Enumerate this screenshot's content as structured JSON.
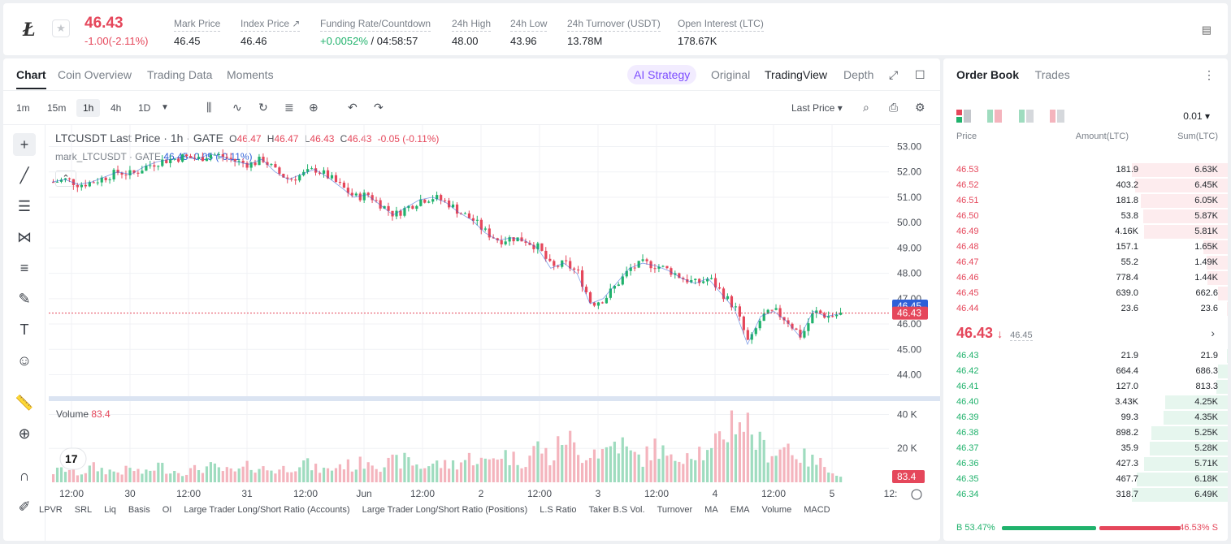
{
  "ticker": {
    "symbol_logo": "Ł",
    "last_price": "46.43",
    "change": "-1.00(-2.11%)",
    "stats": [
      {
        "label": "Mark Price",
        "value": "46.45"
      },
      {
        "label": "Index Price ↗",
        "value": "46.46"
      },
      {
        "label": "Funding Rate/Countdown",
        "value_green": "+0.0052%",
        "value": " / 04:58:57"
      },
      {
        "label": "24h High",
        "value": "48.00"
      },
      {
        "label": "24h Low",
        "value": "43.96"
      },
      {
        "label": "24h Turnover (USDT)",
        "value": "13.78M"
      },
      {
        "label": "Open Interest (LTC)",
        "value": "178.67K"
      }
    ]
  },
  "chart_tabs": [
    "Chart",
    "Coin Overview",
    "Trading Data",
    "Moments"
  ],
  "view_tabs": {
    "strategy": "AI Strategy",
    "items": [
      "Original",
      "TradingView",
      "Depth"
    ]
  },
  "timeframes": [
    "1m",
    "15m",
    "1h",
    "4h",
    "1D"
  ],
  "price_source": "Last Price",
  "legend": {
    "title": "LTCUSDT Last Price · 1h · GATE",
    "ohlc": [
      {
        "k": "O",
        "v": "46.47"
      },
      {
        "k": "H",
        "v": "46.47"
      },
      {
        "k": "L",
        "v": "46.43"
      },
      {
        "k": "C",
        "v": "46.43"
      }
    ],
    "delta": "-0.05 (-0.11%)",
    "mark_label": "mark_LTCUSDT · GATE",
    "mark_values": "46.45 -0.05 (-0.11%)",
    "volume_label": "Volume",
    "volume_value": "83.4"
  },
  "chart_data": {
    "type": "candlestick",
    "price_axis": [
      "53.00",
      "52.00",
      "51.00",
      "50.00",
      "49.00",
      "48.00",
      "47.00",
      "46.00",
      "45.00",
      "44.00"
    ],
    "price_range": [
      43.6,
      53.4
    ],
    "volume_axis": [
      "40 K",
      "20 K"
    ],
    "volume_range": [
      0,
      45000
    ],
    "x_ticks": [
      "12:00",
      "30",
      "12:00",
      "31",
      "12:00",
      "Jun",
      "12:00",
      "2",
      "12:00",
      "3",
      "12:00",
      "4",
      "12:00",
      "5",
      "12:"
    ],
    "close_trend": [
      51.6,
      51.7,
      51.5,
      51.6,
      51.8,
      52.0,
      51.9,
      52.2,
      52.4,
      52.5,
      52.6,
      52.5,
      52.7,
      52.6,
      52.4,
      52.3,
      52.5,
      52.0,
      51.7,
      51.9,
      52.1,
      51.8,
      51.4,
      51.0,
      51.1,
      50.7,
      50.3,
      50.6,
      50.9,
      51.0,
      50.8,
      50.4,
      50.1,
      49.6,
      49.3,
      49.4,
      49.3,
      49.0,
      48.2,
      48.4,
      48.0,
      46.8,
      47.0,
      47.6,
      48.2,
      48.4,
      48.3,
      48.1,
      47.8,
      47.6,
      47.8,
      47.2,
      46.6,
      45.2,
      46.3,
      46.5,
      46.1,
      45.5,
      46.5,
      46.3,
      46.4
    ],
    "volume_trend": [
      6,
      8,
      5,
      9,
      7,
      6,
      8,
      5,
      10,
      7,
      6,
      8,
      9,
      7,
      6,
      10,
      8,
      7,
      9,
      12,
      8,
      7,
      11,
      9,
      14,
      10,
      12,
      13,
      9,
      11,
      10,
      12,
      15,
      11,
      18,
      14,
      13,
      22,
      12,
      30,
      15,
      20,
      18,
      25,
      16,
      14,
      22,
      12,
      18,
      20,
      15,
      28,
      40,
      33,
      20,
      18,
      22,
      15,
      12,
      10,
      3
    ],
    "last_price_tag": "46.43",
    "mark_price_tag": "46.45",
    "volume_tag": "83.4",
    "colors": {
      "up": "#20b26c",
      "down": "#e5475b",
      "mark_line": "#2d5fd8"
    }
  },
  "indicators": [
    "LPVR",
    "SRL",
    "Liq",
    "Basis",
    "OI",
    "Large Trader Long/Short Ratio (Accounts)",
    "Large Trader Long/Short Ratio (Positions)",
    "L.S Ratio",
    "Taker B.S Vol.",
    "Turnover",
    "MA",
    "EMA",
    "Volume",
    "MACD"
  ],
  "order_book": {
    "tabs": [
      "Order Book",
      "Trades"
    ],
    "precision": "0.01",
    "headers": {
      "price": "Price",
      "amount": "Amount(LTC)",
      "sum": "Sum(LTC)"
    },
    "asks": [
      {
        "p": "46.53",
        "a": "181.9",
        "s": "6.63K",
        "d": 1.0
      },
      {
        "p": "46.52",
        "a": "403.2",
        "s": "6.45K",
        "d": 0.97
      },
      {
        "p": "46.51",
        "a": "181.8",
        "s": "6.05K",
        "d": 0.91
      },
      {
        "p": "46.50",
        "a": "53.8",
        "s": "5.87K",
        "d": 0.88
      },
      {
        "p": "46.49",
        "a": "4.16K",
        "s": "5.81K",
        "d": 0.87
      },
      {
        "p": "46.48",
        "a": "157.1",
        "s": "1.65K",
        "d": 0.25
      },
      {
        "p": "46.47",
        "a": "55.2",
        "s": "1.49K",
        "d": 0.22
      },
      {
        "p": "46.46",
        "a": "778.4",
        "s": "1.44K",
        "d": 0.21
      },
      {
        "p": "46.45",
        "a": "639.0",
        "s": "662.6",
        "d": 0.1
      },
      {
        "p": "46.44",
        "a": "23.6",
        "s": "23.6",
        "d": 0.01
      }
    ],
    "mid_price": "46.43",
    "mid_arrow": "↓",
    "mid_mark": "46.45",
    "bids": [
      {
        "p": "46.43",
        "a": "21.9",
        "s": "21.9",
        "d": 0.01
      },
      {
        "p": "46.42",
        "a": "664.4",
        "s": "686.3",
        "d": 0.1
      },
      {
        "p": "46.41",
        "a": "127.0",
        "s": "813.3",
        "d": 0.12
      },
      {
        "p": "46.40",
        "a": "3.43K",
        "s": "4.25K",
        "d": 0.65
      },
      {
        "p": "46.39",
        "a": "99.3",
        "s": "4.35K",
        "d": 0.67
      },
      {
        "p": "46.38",
        "a": "898.2",
        "s": "5.25K",
        "d": 0.8
      },
      {
        "p": "46.37",
        "a": "35.9",
        "s": "5.28K",
        "d": 0.81
      },
      {
        "p": "46.36",
        "a": "427.3",
        "s": "5.71K",
        "d": 0.87
      },
      {
        "p": "46.35",
        "a": "467.7",
        "s": "6.18K",
        "d": 0.95
      },
      {
        "p": "46.34",
        "a": "318.7",
        "s": "6.49K",
        "d": 1.0
      }
    ],
    "buy_ratio": "53.47%",
    "sell_ratio": "46.53%",
    "buy_label": "B",
    "sell_label": "S",
    "buy_fraction": 0.5347
  }
}
